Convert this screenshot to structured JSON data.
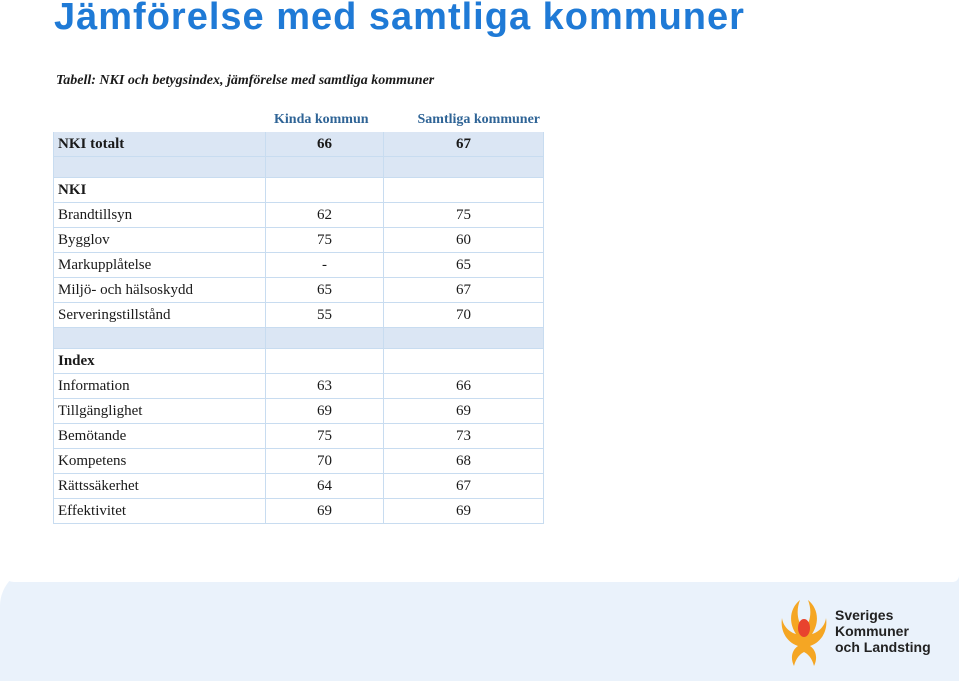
{
  "title": "Jämförelse med samtliga kommuner",
  "caption": "Tabell: NKI och betygsindex, jämförelse med samtliga kommuner",
  "table": {
    "headers": [
      "",
      "Kinda kommun",
      "Samtliga kommuner"
    ],
    "total": {
      "label": "NKI totalt",
      "kinda": "66",
      "samtliga": "67"
    },
    "nki": {
      "label": "NKI",
      "rows": [
        {
          "label": "Brandtillsyn",
          "kinda": "62",
          "samtliga": "75"
        },
        {
          "label": "Bygglov",
          "kinda": "75",
          "samtliga": "60"
        },
        {
          "label": "Markupplåtelse",
          "kinda": "-",
          "samtliga": "65"
        },
        {
          "label": "Miljö- och hälsoskydd",
          "kinda": "65",
          "samtliga": "67"
        },
        {
          "label": "Serveringstillstånd",
          "kinda": "55",
          "samtliga": "70"
        }
      ]
    },
    "index": {
      "label": "Index",
      "rows": [
        {
          "label": "Information",
          "kinda": "63",
          "samtliga": "66"
        },
        {
          "label": "Tillgänglighet",
          "kinda": "69",
          "samtliga": "69"
        },
        {
          "label": "Bemötande",
          "kinda": "75",
          "samtliga": "73"
        },
        {
          "label": "Kompetens",
          "kinda": "70",
          "samtliga": "68"
        },
        {
          "label": "Rättssäkerhet",
          "kinda": "64",
          "samtliga": "67"
        },
        {
          "label": "Effektivitet",
          "kinda": "69",
          "samtliga": "69"
        }
      ]
    }
  },
  "logo": {
    "line1": "Sveriges",
    "line2": "Kommuner",
    "line3": "och Landsting"
  },
  "colors": {
    "title": "#1f7ad6",
    "header_text": "#2f6496",
    "row_shade": "#dbe6f4",
    "logo_orange": "#f5a623",
    "logo_red": "#e8432e"
  }
}
